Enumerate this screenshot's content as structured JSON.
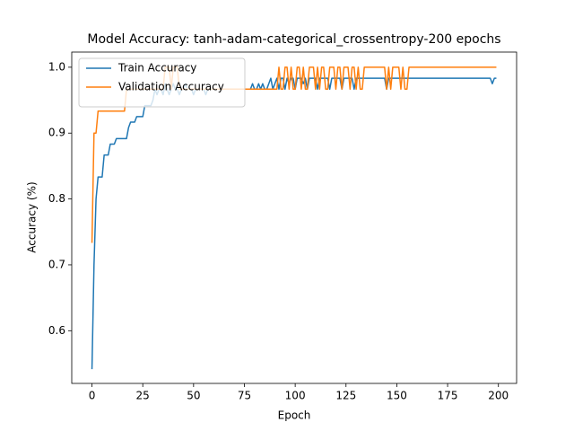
{
  "chart_data": {
    "type": "line",
    "title": "Model Accuracy: tanh-adam-categorical_crossentropy-200 epochs",
    "xlabel": "Epoch",
    "ylabel": "Accuracy (%)",
    "x": [
      0,
      1,
      2,
      3,
      4,
      5,
      6,
      7,
      8,
      9,
      10,
      11,
      12,
      13,
      14,
      15,
      16,
      17,
      18,
      19,
      20,
      21,
      22,
      23,
      24,
      25,
      26,
      27,
      28,
      29,
      30,
      31,
      32,
      33,
      34,
      35,
      36,
      37,
      38,
      39,
      40,
      41,
      42,
      43,
      44,
      45,
      46,
      47,
      48,
      49,
      50,
      51,
      52,
      53,
      54,
      55,
      56,
      57,
      58,
      59,
      60,
      61,
      62,
      63,
      64,
      65,
      66,
      67,
      68,
      69,
      70,
      71,
      72,
      73,
      74,
      75,
      76,
      77,
      78,
      79,
      80,
      81,
      82,
      83,
      84,
      85,
      86,
      87,
      88,
      89,
      90,
      91,
      92,
      93,
      94,
      95,
      96,
      97,
      98,
      99,
      100,
      101,
      102,
      103,
      104,
      105,
      106,
      107,
      108,
      109,
      110,
      111,
      112,
      113,
      114,
      115,
      116,
      117,
      118,
      119,
      120,
      121,
      122,
      123,
      124,
      125,
      126,
      127,
      128,
      129,
      130,
      131,
      132,
      133,
      134,
      135,
      136,
      137,
      138,
      139,
      140,
      141,
      142,
      143,
      144,
      145,
      146,
      147,
      148,
      149,
      150,
      151,
      152,
      153,
      154,
      155,
      156,
      157,
      158,
      159,
      160,
      161,
      162,
      163,
      164,
      165,
      166,
      167,
      168,
      169,
      170,
      171,
      172,
      173,
      174,
      175,
      176,
      177,
      178,
      179,
      180,
      181,
      182,
      183,
      184,
      185,
      186,
      187,
      188,
      189,
      190,
      191,
      192,
      193,
      194,
      195,
      196,
      197,
      198,
      199
    ],
    "series": [
      {
        "name": "Train Accuracy",
        "color": "#1f77b4",
        "values": [
          0.5417,
          0.7,
          0.8,
          0.8333,
          0.8333,
          0.8333,
          0.8667,
          0.8667,
          0.8667,
          0.8833,
          0.8833,
          0.8833,
          0.8917,
          0.8917,
          0.8917,
          0.8917,
          0.8917,
          0.8917,
          0.9083,
          0.9167,
          0.9167,
          0.9167,
          0.925,
          0.925,
          0.925,
          0.925,
          0.9417,
          0.9417,
          0.9417,
          0.9417,
          0.95,
          0.9667,
          0.9583,
          0.9667,
          0.9667,
          0.9583,
          0.975,
          0.9667,
          0.9583,
          0.9667,
          0.975,
          0.9667,
          0.9667,
          0.9583,
          0.9667,
          0.9667,
          0.975,
          0.9667,
          0.9667,
          0.9667,
          0.9583,
          0.9667,
          0.9667,
          0.9667,
          0.9667,
          0.9667,
          0.9583,
          0.9667,
          0.9667,
          0.9667,
          0.9667,
          0.9667,
          0.9667,
          0.9667,
          0.9667,
          0.9667,
          0.9667,
          0.9667,
          0.9667,
          0.9667,
          0.9667,
          0.9667,
          0.9667,
          0.9667,
          0.9667,
          0.9667,
          0.9667,
          0.9667,
          0.9667,
          0.975,
          0.9667,
          0.9667,
          0.975,
          0.9667,
          0.975,
          0.9667,
          0.9667,
          0.975,
          0.9833,
          0.9667,
          0.975,
          0.9833,
          0.9667,
          0.9833,
          0.9833,
          0.9667,
          0.9833,
          0.975,
          0.9833,
          0.9833,
          0.9667,
          0.9833,
          0.9833,
          0.9833,
          0.975,
          0.9833,
          0.9667,
          0.9833,
          0.9833,
          0.9833,
          0.9833,
          0.9667,
          0.9833,
          0.9833,
          0.9833,
          0.9833,
          0.9833,
          0.9667,
          0.9833,
          0.9833,
          0.9833,
          0.9833,
          0.9833,
          0.9667,
          0.9833,
          0.9833,
          0.9833,
          0.9833,
          0.9833,
          0.9667,
          0.9833,
          0.9833,
          0.9833,
          0.9833,
          0.9833,
          0.9833,
          0.9833,
          0.9833,
          0.9833,
          0.9833,
          0.9833,
          0.9833,
          0.9833,
          0.9833,
          0.9833,
          0.9667,
          0.9833,
          0.9833,
          0.9833,
          0.9833,
          0.9833,
          0.9833,
          0.9833,
          0.9833,
          0.9833,
          0.9833,
          0.9833,
          0.9833,
          0.9833,
          0.9833,
          0.9833,
          0.9833,
          0.9833,
          0.9833,
          0.9833,
          0.9833,
          0.9833,
          0.9833,
          0.9833,
          0.9833,
          0.9833,
          0.9833,
          0.9833,
          0.9833,
          0.9833,
          0.9833,
          0.9833,
          0.9833,
          0.9833,
          0.9833,
          0.9833,
          0.9833,
          0.9833,
          0.9833,
          0.9833,
          0.9833,
          0.9833,
          0.9833,
          0.9833,
          0.9833,
          0.9833,
          0.9833,
          0.9833,
          0.9833,
          0.9833,
          0.9833,
          0.9833,
          0.975,
          0.9833,
          0.9833
        ]
      },
      {
        "name": "Validation Accuracy",
        "color": "#ff7f0e",
        "values": [
          0.7333,
          0.9,
          0.9,
          0.9333,
          0.9333,
          0.9333,
          0.9333,
          0.9333,
          0.9333,
          0.9333,
          0.9333,
          0.9333,
          0.9333,
          0.9333,
          0.9333,
          0.9333,
          0.9333,
          0.9667,
          0.9667,
          0.9667,
          0.9667,
          0.9667,
          0.9667,
          0.9667,
          0.9667,
          0.9667,
          0.9667,
          0.9667,
          0.9667,
          0.9667,
          0.9667,
          0.9667,
          0.9667,
          0.9667,
          0.9667,
          0.9667,
          1,
          1,
          1,
          0.9667,
          1,
          1,
          1,
          0.9667,
          0.9667,
          0.9667,
          0.9667,
          0.9667,
          0.9667,
          0.9667,
          0.9667,
          0.9667,
          0.9667,
          0.9667,
          0.9667,
          0.9667,
          0.9667,
          0.9667,
          0.9667,
          0.9667,
          0.9667,
          0.9667,
          0.9667,
          0.9667,
          0.9667,
          0.9667,
          0.9667,
          0.9667,
          0.9667,
          0.9667,
          0.9667,
          0.9667,
          0.9667,
          0.9667,
          0.9667,
          0.9667,
          0.9667,
          0.9667,
          0.9667,
          0.9667,
          0.9667,
          0.9667,
          0.9667,
          0.9667,
          0.9667,
          0.9667,
          0.9667,
          0.9667,
          0.9667,
          0.9667,
          0.9667,
          0.9667,
          1,
          0.9667,
          0.9667,
          1,
          1,
          0.9667,
          1,
          0.9667,
          0.9667,
          1,
          1,
          0.9667,
          1,
          0.9667,
          0.9667,
          1,
          1,
          1,
          0.9667,
          1,
          0.9667,
          1,
          1,
          0.9667,
          0.9667,
          1,
          1,
          1,
          0.9667,
          1,
          1,
          0.9667,
          1,
          1,
          1,
          0.9667,
          1,
          1,
          0.9667,
          1,
          0.9667,
          0.9667,
          1,
          1,
          1,
          1,
          1,
          1,
          1,
          1,
          1,
          1,
          1,
          0.9667,
          1,
          0.9667,
          1,
          1,
          1,
          1,
          0.9667,
          1,
          0.9667,
          0.9667,
          1,
          1,
          1,
          1,
          1,
          1,
          1,
          1,
          1,
          1,
          1,
          1,
          1,
          1,
          1,
          1,
          1,
          1,
          1,
          1,
          1,
          1,
          1,
          1,
          1,
          1,
          1,
          1,
          1,
          1,
          1,
          1,
          1,
          1,
          1,
          1,
          1,
          1,
          1,
          1,
          1,
          1,
          1,
          1
        ]
      }
    ],
    "xlim": [
      -9.95,
      208.95
    ],
    "xticks": [
      0,
      25,
      50,
      75,
      100,
      125,
      150,
      175,
      200
    ],
    "ylim": [
      0.52,
      1.023
    ],
    "yticks": [
      0.6,
      0.7,
      0.8,
      0.9,
      {
        "value": 1,
        "label": "1.0"
      }
    ],
    "legend": "upper left",
    "grid": false
  }
}
